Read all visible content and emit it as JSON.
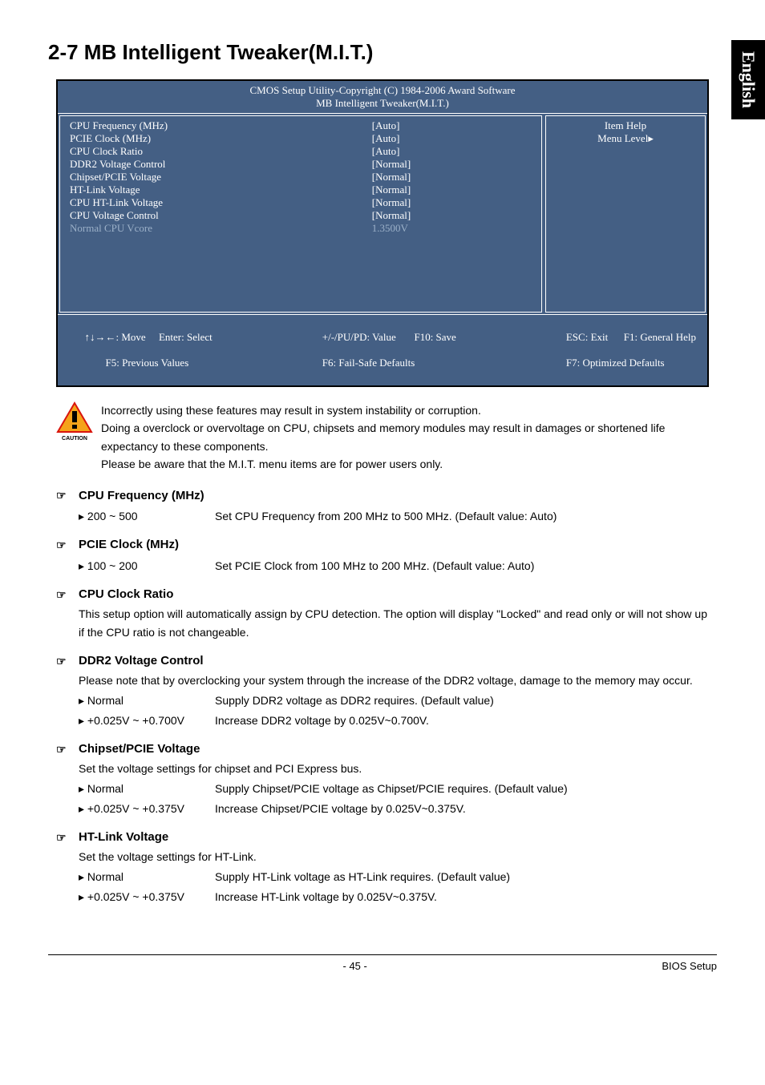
{
  "sideTab": "English",
  "pageTitle": "2-7   MB Intelligent Tweaker(M.I.T.)",
  "bios": {
    "headerLine1": "CMOS Setup Utility-Copyright (C) 1984-2006 Award Software",
    "headerLine2": "MB Intelligent Tweaker(M.I.T.)",
    "rows": [
      {
        "label": "CPU Frequency (MHz)",
        "value": "[Auto]",
        "dim": false
      },
      {
        "label": "PCIE Clock (MHz)",
        "value": "[Auto]",
        "dim": false
      },
      {
        "label": "CPU Clock Ratio",
        "value": "[Auto]",
        "dim": false
      },
      {
        "label": "DDR2 Voltage Control",
        "value": "[Normal]",
        "dim": false
      },
      {
        "label": "Chipset/PCIE Voltage",
        "value": "[Normal]",
        "dim": false
      },
      {
        "label": "HT-Link Voltage",
        "value": "[Normal]",
        "dim": false
      },
      {
        "label": "CPU HT-Link Voltage",
        "value": "[Normal]",
        "dim": false
      },
      {
        "label": "CPU Voltage Control",
        "value": "[Normal]",
        "dim": false
      },
      {
        "label": "Normal CPU Vcore",
        "value": "1.3500V",
        "dim": true
      }
    ],
    "help": {
      "title": "Item Help",
      "menu": "Menu Level▸"
    },
    "footer": {
      "c1a": "↑↓→←: Move",
      "c1b": "Enter: Select",
      "c2a": "+/-/PU/PD: Value",
      "c2b": "F10: Save",
      "c3a": "ESC: Exit",
      "c3b": "F1: General Help",
      "d1": "F5: Previous Values",
      "d2": "F6: Fail-Safe Defaults",
      "d3": "F7: Optimized Defaults"
    },
    "colors": {
      "bg": "#445f84",
      "text": "#ffffff",
      "dim": "#9bb0c8",
      "border": "#000000"
    }
  },
  "caution": {
    "label": "CAUTION",
    "lines": [
      "Incorrectly using these features may result in system instability or corruption.",
      "Doing a overclock or overvoltage on CPU, chipsets and memory modules may result in damages or shortened life expectancy to these components.",
      "Please be aware that the M.I.T. menu items are for power users only."
    ],
    "iconColors": {
      "triangle": "#f5a31a",
      "border": "#d9140c",
      "mark": "#000000"
    }
  },
  "sections": [
    {
      "title": "CPU Frequency (MHz)",
      "options": [
        {
          "label": "200 ~ 500",
          "desc": "Set CPU Frequency from 200 MHz to 500 MHz. (Default value: Auto)"
        }
      ]
    },
    {
      "title": "PCIE Clock (MHz)",
      "options": [
        {
          "label": "100 ~ 200",
          "desc": "Set PCIE Clock from 100 MHz to 200 MHz. (Default value: Auto)"
        }
      ]
    },
    {
      "title": "CPU Clock Ratio",
      "text": "This setup option will automatically assign by CPU detection. The option will display \"Locked\" and read only or will not show up if the CPU ratio is not changeable."
    },
    {
      "title": "DDR2 Voltage Control",
      "text": "Please note that by overclocking your system through the increase of the DDR2 voltage, damage to the memory may occur.",
      "options": [
        {
          "label": "Normal",
          "desc": "Supply DDR2 voltage as DDR2 requires. (Default value)"
        },
        {
          "label": "+0.025V ~ +0.700V",
          "desc": "Increase DDR2 voltage by 0.025V~0.700V."
        }
      ]
    },
    {
      "title": "Chipset/PCIE Voltage",
      "text": "Set the voltage settings for chipset and PCI Express bus.",
      "options": [
        {
          "label": "Normal",
          "desc": "Supply Chipset/PCIE voltage as Chipset/PCIE requires. (Default value)"
        },
        {
          "label": "+0.025V ~ +0.375V",
          "desc": "Increase Chipset/PCIE voltage by 0.025V~0.375V."
        }
      ]
    },
    {
      "title": "HT-Link Voltage",
      "text": "Set the voltage settings for HT-Link.",
      "options": [
        {
          "label": "Normal",
          "desc": "Supply HT-Link voltage as HT-Link requires. (Default value)"
        },
        {
          "label": "+0.025V ~ +0.375V",
          "desc": "Increase HT-Link voltage by 0.025V~0.375V."
        }
      ]
    }
  ],
  "footer": {
    "page": "- 45 -",
    "section": "BIOS Setup"
  }
}
